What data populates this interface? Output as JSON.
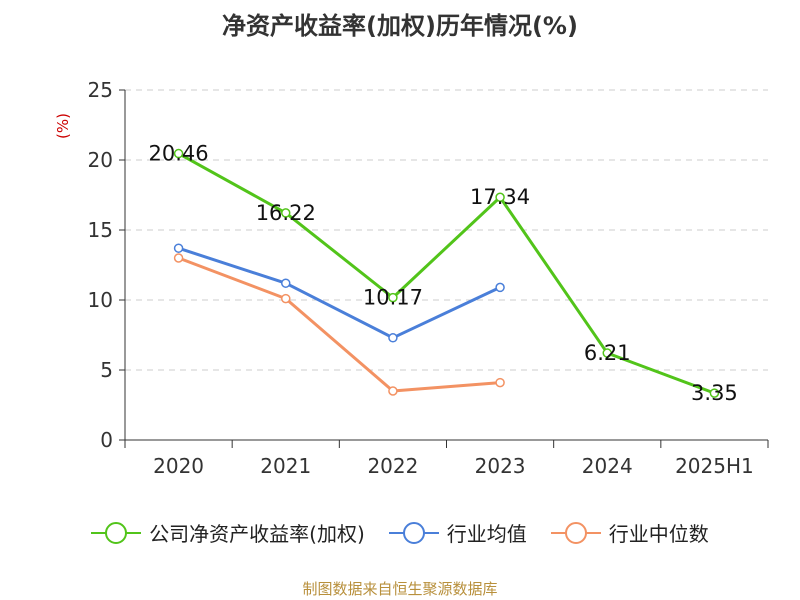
{
  "title": "净资产收益率(加权)历年情况(%)",
  "source_note": "制图数据来自恒生聚源数据库",
  "chart_data": {
    "type": "line",
    "title": "净资产收益率(加权)历年情况(%)",
    "ylabel": "(%)",
    "xlabel": "",
    "categories": [
      "2020",
      "2021",
      "2022",
      "2023",
      "2024",
      "2025H1"
    ],
    "ylim": [
      0,
      25
    ],
    "yticks": [
      0,
      5,
      10,
      15,
      20,
      25
    ],
    "grid": true,
    "legend_position": "bottom",
    "series": [
      {
        "name": "公司净资产收益率(加权)",
        "color": "#52c41a",
        "values": [
          20.46,
          16.22,
          10.17,
          17.34,
          6.21,
          3.35
        ],
        "labels": [
          "20.46",
          "16.22",
          "10.17",
          "17.34",
          "6.21",
          "3.35"
        ]
      },
      {
        "name": "行业均值",
        "color": "#4a7fd9",
        "values": [
          13.7,
          11.2,
          7.3,
          10.9,
          null,
          null
        ]
      },
      {
        "name": "行业中位数",
        "color": "#f39263",
        "values": [
          13.0,
          10.1,
          3.5,
          4.1,
          null,
          null
        ]
      }
    ]
  }
}
